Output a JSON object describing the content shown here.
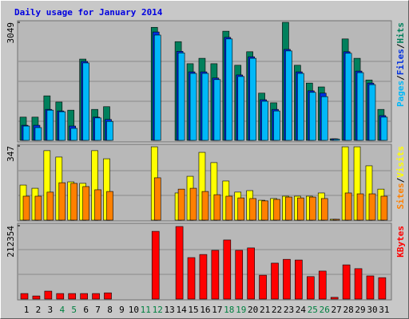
{
  "title": "Daily usage for January 2014",
  "legend_separator": "/",
  "weekend_color": "#008040",
  "weekend_indices": [
    3,
    4,
    10,
    11,
    17,
    18,
    24,
    25
  ],
  "chart_data": [
    {
      "type": "bar",
      "ylim": [
        0,
        3049
      ],
      "yticks": [
        3049
      ],
      "series": [
        {
          "name": "Hits",
          "color": "#00805c",
          "values": [
            600,
            600,
            1150,
            990,
            780,
            2100,
            800,
            870,
            0,
            0,
            0,
            2920,
            0,
            2550,
            1980,
            2120,
            1980,
            2820,
            1940,
            2290,
            1220,
            970,
            3049,
            1940,
            1480,
            1380,
            40,
            2620,
            2120,
            1560,
            800
          ]
        },
        {
          "name": "Files",
          "color": "#0030e0",
          "values": [
            390,
            390,
            800,
            760,
            370,
            2040,
            600,
            540,
            0,
            0,
            0,
            2800,
            0,
            2300,
            1770,
            1770,
            1610,
            2660,
            1690,
            2160,
            1050,
            800,
            2350,
            1770,
            1280,
            1220,
            40,
            2290,
            1790,
            1480,
            640
          ]
        },
        {
          "name": "Pages",
          "color": "#00b8f8",
          "values": [
            370,
            330,
            780,
            740,
            310,
            2000,
            580,
            490,
            0,
            0,
            0,
            2720,
            0,
            2260,
            1730,
            1730,
            1570,
            2620,
            1650,
            2120,
            1010,
            760,
            2310,
            1730,
            1240,
            1130,
            30,
            2250,
            1750,
            1440,
            600
          ]
        }
      ]
    },
    {
      "type": "bar",
      "ylim": [
        0,
        347
      ],
      "yticks": [
        347
      ],
      "series": [
        {
          "name": "Visits",
          "color": "#ffff00",
          "values": [
            164,
            149,
            325,
            295,
            179,
            172,
            325,
            287,
            0,
            0,
            0,
            343,
            0,
            127,
            205,
            317,
            269,
            183,
            131,
            138,
            93,
            101,
            112,
            112,
            112,
            127,
            4,
            343,
            343,
            254,
            145
          ]
        },
        {
          "name": "Sites",
          "color": "#ff8000",
          "values": [
            112,
            112,
            131,
            175,
            172,
            157,
            142,
            134,
            0,
            0,
            0,
            198,
            0,
            145,
            149,
            134,
            119,
            112,
            104,
            101,
            90,
            97,
            108,
            104,
            108,
            101,
            4,
            127,
            123,
            123,
            112
          ]
        }
      ]
    },
    {
      "type": "bar",
      "ylim": [
        0,
        212354
      ],
      "yticks": [
        212354
      ],
      "categories": [
        "1",
        "2",
        "3",
        "4",
        "5",
        "6",
        "7",
        "8",
        "9",
        "10",
        "11",
        "12",
        "13",
        "14",
        "15",
        "16",
        "17",
        "18",
        "19",
        "20",
        "21",
        "22",
        "23",
        "24",
        "25",
        "26",
        "27",
        "28",
        "29",
        "30",
        "31"
      ],
      "series": [
        {
          "name": "KBytes",
          "color": "#ff0000",
          "values": [
            16000,
            9000,
            23000,
            16000,
            16000,
            16000,
            16000,
            18000,
            0,
            0,
            0,
            196000,
            0,
            210000,
            120000,
            129000,
            141000,
            171000,
            141000,
            148000,
            69000,
            104000,
            115000,
            113000,
            65000,
            81000,
            5000,
            99000,
            88000,
            67000,
            62000
          ]
        }
      ]
    }
  ]
}
